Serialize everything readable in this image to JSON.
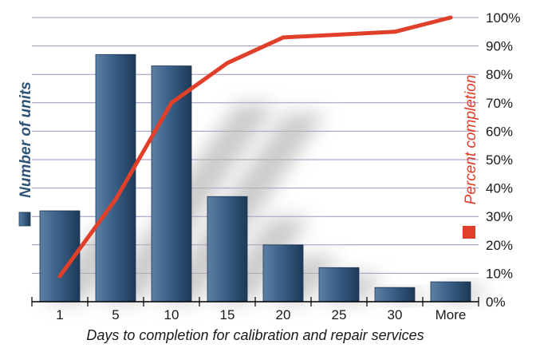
{
  "chart_data": {
    "type": "bar",
    "categories": [
      "1",
      "5",
      "10",
      "15",
      "20",
      "25",
      "30",
      "More"
    ],
    "series": [
      {
        "type": "bar",
        "values": [
          32,
          87,
          83,
          37,
          20,
          12,
          5,
          7
        ]
      },
      {
        "type": "line",
        "values": [
          9,
          36,
          70,
          84,
          93,
          94,
          95,
          100
        ]
      }
    ],
    "xlabel": "Days to completion for calibration and repair services",
    "ylabel_left": "Number of units",
    "ylabel_right": "Percent completion",
    "y_right_ticks": [
      "0%",
      "10%",
      "20%",
      "30%",
      "40%",
      "50%",
      "60%",
      "70%",
      "80%",
      "90%",
      "100%"
    ],
    "ylim_left": [
      0,
      100
    ],
    "ylim_right": [
      0,
      100
    ],
    "grid": true,
    "legend": "beside axis titles",
    "colors": {
      "bar": "#2e5376",
      "line": "#e0402a",
      "grid": "#a58fc0"
    }
  }
}
